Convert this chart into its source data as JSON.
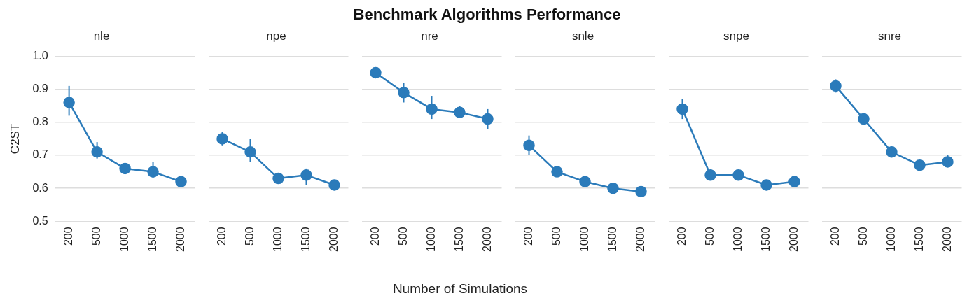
{
  "chart_data": [
    {
      "type": "line",
      "title": "nle",
      "annotations": [
        "Benchmark Algorithms Performance"
      ],
      "ylabel": "C2ST",
      "categories": [
        "200",
        "500",
        "1000",
        "1500",
        "2000"
      ],
      "series": [
        {
          "color": "#2b7bba",
          "values": [
            0.86,
            0.71,
            0.66,
            0.65,
            0.62
          ],
          "errors": [
            [
              0.82,
              0.91
            ],
            [
              0.69,
              0.74
            ],
            null,
            [
              0.63,
              0.68
            ],
            null
          ]
        }
      ],
      "ylim": [
        0.5,
        1.0
      ],
      "yticks": [
        0.5,
        0.6,
        0.7,
        0.8,
        0.9,
        {
          "value": 1.0,
          "label": "1.0"
        }
      ],
      "grid": "y",
      "marker": "circle",
      "legend": false
    },
    {
      "type": "line",
      "title": "npe",
      "categories": [
        "200",
        "500",
        "1000",
        "1500",
        "2000"
      ],
      "series": [
        {
          "color": "#2b7bba",
          "values": [
            0.75,
            0.71,
            0.63,
            0.64,
            0.61
          ],
          "errors": [
            [
              0.73,
              0.77
            ],
            [
              0.68,
              0.75
            ],
            null,
            [
              0.61,
              0.66
            ],
            null
          ]
        }
      ],
      "ylim": [
        0.5,
        1.0
      ],
      "yticks": [
        0.5,
        0.6,
        0.7,
        0.8,
        0.9,
        1.0
      ],
      "grid": "y",
      "marker": "circle",
      "legend": false,
      "tick_labels": "x"
    },
    {
      "type": "line",
      "title": "nre",
      "xlabel": "Number of Simulations",
      "categories": [
        "200",
        "500",
        "1000",
        "1500",
        "2000"
      ],
      "series": [
        {
          "color": "#2b7bba",
          "values": [
            0.95,
            0.89,
            0.84,
            0.83,
            0.81
          ],
          "errors": [
            null,
            [
              0.86,
              0.92
            ],
            [
              0.81,
              0.88
            ],
            [
              0.82,
              0.85
            ],
            [
              0.78,
              0.84
            ]
          ]
        }
      ],
      "ylim": [
        0.5,
        1.0
      ],
      "yticks": [
        0.5,
        0.6,
        0.7,
        0.8,
        0.9,
        1.0
      ],
      "grid": "y",
      "marker": "circle",
      "legend": false,
      "tick_labels": "x"
    },
    {
      "type": "line",
      "title": "snle",
      "categories": [
        "200",
        "500",
        "1000",
        "1500",
        "2000"
      ],
      "series": [
        {
          "color": "#2b7bba",
          "values": [
            0.73,
            0.65,
            0.62,
            0.6,
            0.59
          ],
          "errors": [
            [
              0.7,
              0.76
            ],
            null,
            null,
            null,
            null
          ]
        }
      ],
      "ylim": [
        0.5,
        1.0
      ],
      "yticks": [
        0.5,
        0.6,
        0.7,
        0.8,
        0.9,
        1.0
      ],
      "grid": "y",
      "marker": "circle",
      "legend": false,
      "tick_labels": "x"
    },
    {
      "type": "line",
      "title": "snpe",
      "categories": [
        "200",
        "500",
        "1000",
        "1500",
        "2000"
      ],
      "series": [
        {
          "color": "#2b7bba",
          "values": [
            0.84,
            0.64,
            0.64,
            0.61,
            0.62
          ],
          "errors": [
            [
              0.81,
              0.87
            ],
            null,
            null,
            null,
            null
          ]
        }
      ],
      "ylim": [
        0.5,
        1.0
      ],
      "yticks": [
        0.5,
        0.6,
        0.7,
        0.8,
        0.9,
        1.0
      ],
      "grid": "y",
      "marker": "circle",
      "legend": false,
      "tick_labels": "x"
    },
    {
      "type": "line",
      "title": "snre",
      "categories": [
        "200",
        "500",
        "1000",
        "1500",
        "2000"
      ],
      "series": [
        {
          "color": "#2b7bba",
          "values": [
            0.91,
            0.81,
            0.71,
            0.67,
            0.68
          ],
          "errors": [
            [
              0.89,
              0.93
            ],
            null,
            null,
            null,
            [
              0.67,
              0.7
            ]
          ]
        }
      ],
      "ylim": [
        0.5,
        1.0
      ],
      "yticks": [
        0.5,
        0.6,
        0.7,
        0.8,
        0.9,
        1.0
      ],
      "grid": "y",
      "marker": "circle",
      "legend": false,
      "tick_labels": "x"
    }
  ]
}
